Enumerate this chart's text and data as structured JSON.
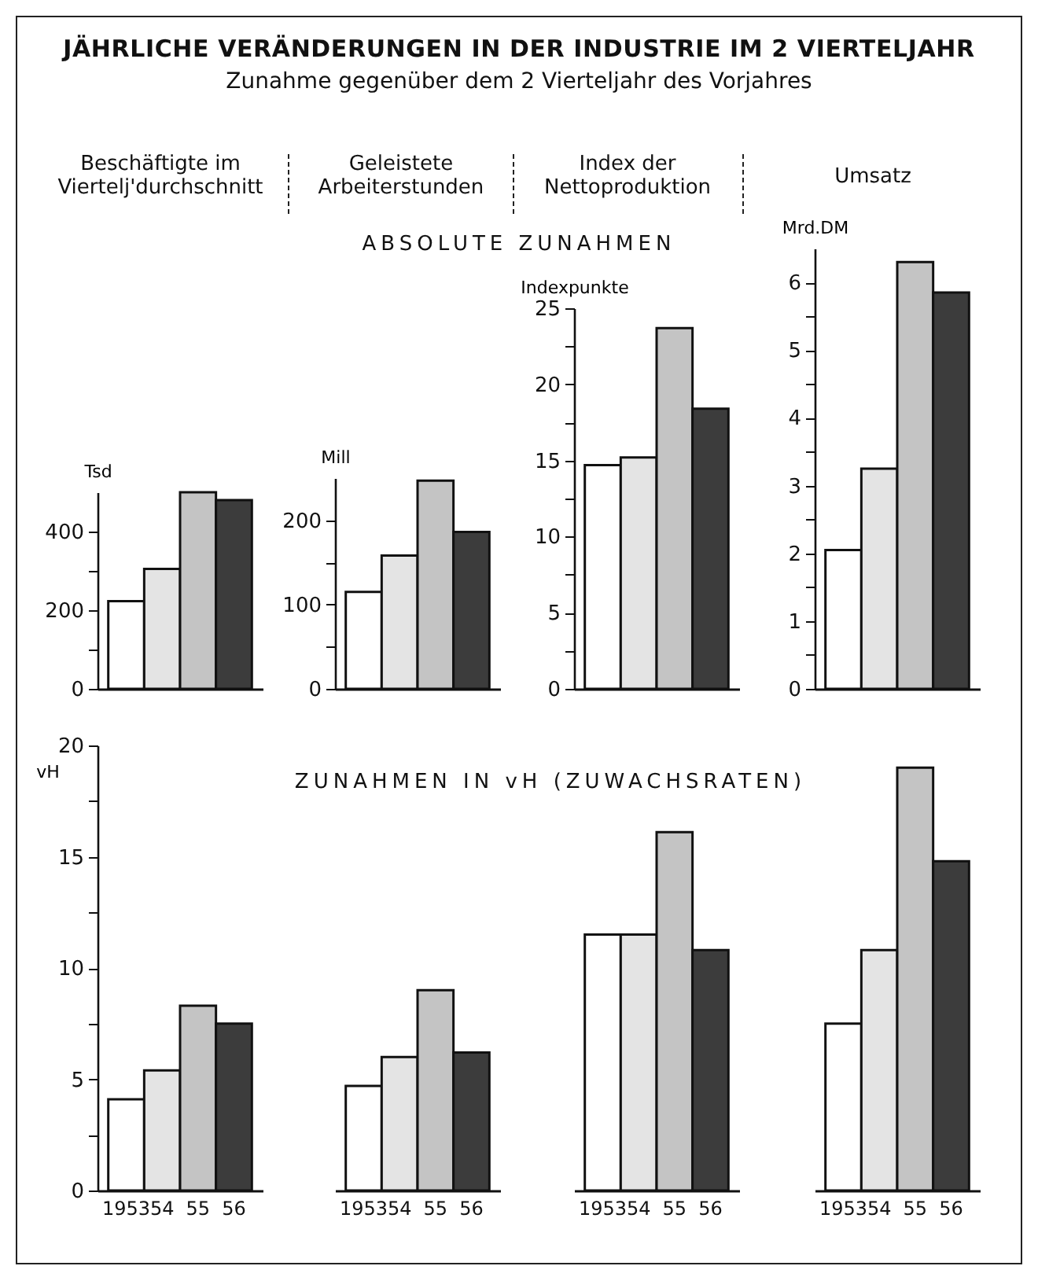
{
  "chart_data": [
    {
      "type": "bar",
      "title": "JÄHRLICHE VERÄNDERUNGEN IN DER INDUSTRIE IM 2 VIERTELJAHR",
      "subtitle": "Zunahme gegenüber dem 2 Vierteljahr des Vorjahres",
      "annotations": [
        "Beschäftigte im\nViertelj'durchschnitt",
        "ABSOLUTE ZUNAHMEN"
      ],
      "ylabel": "Tsd",
      "categories": [
        null,
        null,
        null,
        null
      ],
      "values": [
        223,
        305,
        500,
        480
      ],
      "colors": [
        "#ffffff",
        "#e4e4e4",
        "#c4c4c4",
        "#3c3c3c"
      ],
      "ylim": [
        0,
        500
      ],
      "yticks": [
        0,
        {
          "value": 100,
          "label": null
        },
        200,
        {
          "value": 300,
          "label": null
        },
        400
      ],
      "tick_labels": "y"
    },
    {
      "type": "bar",
      "annotations": [
        "Geleistete\nArbeiterstunden"
      ],
      "ylabel": "Mill",
      "categories": [
        null,
        null,
        null,
        null
      ],
      "values": [
        115,
        158,
        247,
        186
      ],
      "colors": [
        "#ffffff",
        "#e4e4e4",
        "#c4c4c4",
        "#3c3c3c"
      ],
      "ylim": [
        0,
        250
      ],
      "yticks": [
        0,
        {
          "value": 50,
          "label": null
        },
        100,
        {
          "value": 150,
          "label": null
        },
        200
      ],
      "tick_labels": "y"
    },
    {
      "type": "bar",
      "annotations": [
        "Index der\nNettoproduktion"
      ],
      "ylabel": "Indexpunkte",
      "categories": [
        null,
        null,
        null,
        null
      ],
      "values": [
        14.7,
        15.2,
        23.7,
        18.4
      ],
      "colors": [
        "#ffffff",
        "#e4e4e4",
        "#c4c4c4",
        "#3c3c3c"
      ],
      "ylim": [
        0,
        25
      ],
      "yticks": [
        0,
        {
          "value": 2.5,
          "label": null
        },
        5,
        {
          "value": 7.5,
          "label": null
        },
        10,
        {
          "value": 12.5,
          "label": null
        },
        15,
        {
          "value": 17.5,
          "label": null
        },
        20,
        {
          "value": 22.5,
          "label": null
        },
        25
      ],
      "tick_labels": "y"
    },
    {
      "type": "bar",
      "annotations": [
        "Umsatz"
      ],
      "ylabel": "Mrd.DM",
      "categories": [
        null,
        null,
        null,
        null
      ],
      "values": [
        2.05,
        3.25,
        6.3,
        5.85
      ],
      "colors": [
        "#ffffff",
        "#e4e4e4",
        "#c4c4c4",
        "#3c3c3c"
      ],
      "ylim": [
        0,
        6.5
      ],
      "yticks": [
        0,
        {
          "value": 0.5,
          "label": null
        },
        1,
        {
          "value": 1.5,
          "label": null
        },
        2,
        {
          "value": 2.5,
          "label": null
        },
        3,
        {
          "value": 3.5,
          "label": null
        },
        4,
        {
          "value": 4.5,
          "label": null
        },
        5,
        {
          "value": 5.5,
          "label": null
        },
        6
      ],
      "tick_labels": "y"
    },
    {
      "type": "bar",
      "annotations": [
        "ZUNAHMEN IN vH (ZUWACHSRATEN)"
      ],
      "ylabel": "vH",
      "categories": [
        "1953",
        "54",
        "55",
        "56"
      ],
      "values": [
        4.1,
        5.4,
        8.3,
        7.5
      ],
      "colors": [
        "#ffffff",
        "#e4e4e4",
        "#c4c4c4",
        "#3c3c3c"
      ],
      "ylim": [
        0,
        20
      ],
      "yticks": [
        0,
        {
          "value": 2.5,
          "label": null
        },
        5,
        {
          "value": 7.5,
          "label": null
        },
        10,
        {
          "value": 12.5,
          "label": null
        },
        15,
        {
          "value": 17.5,
          "label": null
        },
        20
      ]
    },
    {
      "type": "bar",
      "categories": [
        "1953",
        "54",
        "55",
        "56"
      ],
      "values": [
        4.7,
        6.0,
        9.0,
        6.2
      ],
      "colors": [
        "#ffffff",
        "#e4e4e4",
        "#c4c4c4",
        "#3c3c3c"
      ],
      "ylim": [
        0,
        20
      ],
      "tick_labels": "x"
    },
    {
      "type": "bar",
      "categories": [
        "1953",
        "54",
        "55",
        "56"
      ],
      "values": [
        11.5,
        11.5,
        16.1,
        10.8
      ],
      "colors": [
        "#ffffff",
        "#e4e4e4",
        "#c4c4c4",
        "#3c3c3c"
      ],
      "ylim": [
        0,
        20
      ],
      "tick_labels": "x"
    },
    {
      "type": "bar",
      "categories": [
        "1953",
        "54",
        "55",
        "56"
      ],
      "values": [
        7.5,
        10.8,
        19.0,
        14.8
      ],
      "colors": [
        "#ffffff",
        "#e4e4e4",
        "#c4c4c4",
        "#3c3c3c"
      ],
      "ylim": [
        0,
        20
      ],
      "tick_labels": "x"
    }
  ]
}
